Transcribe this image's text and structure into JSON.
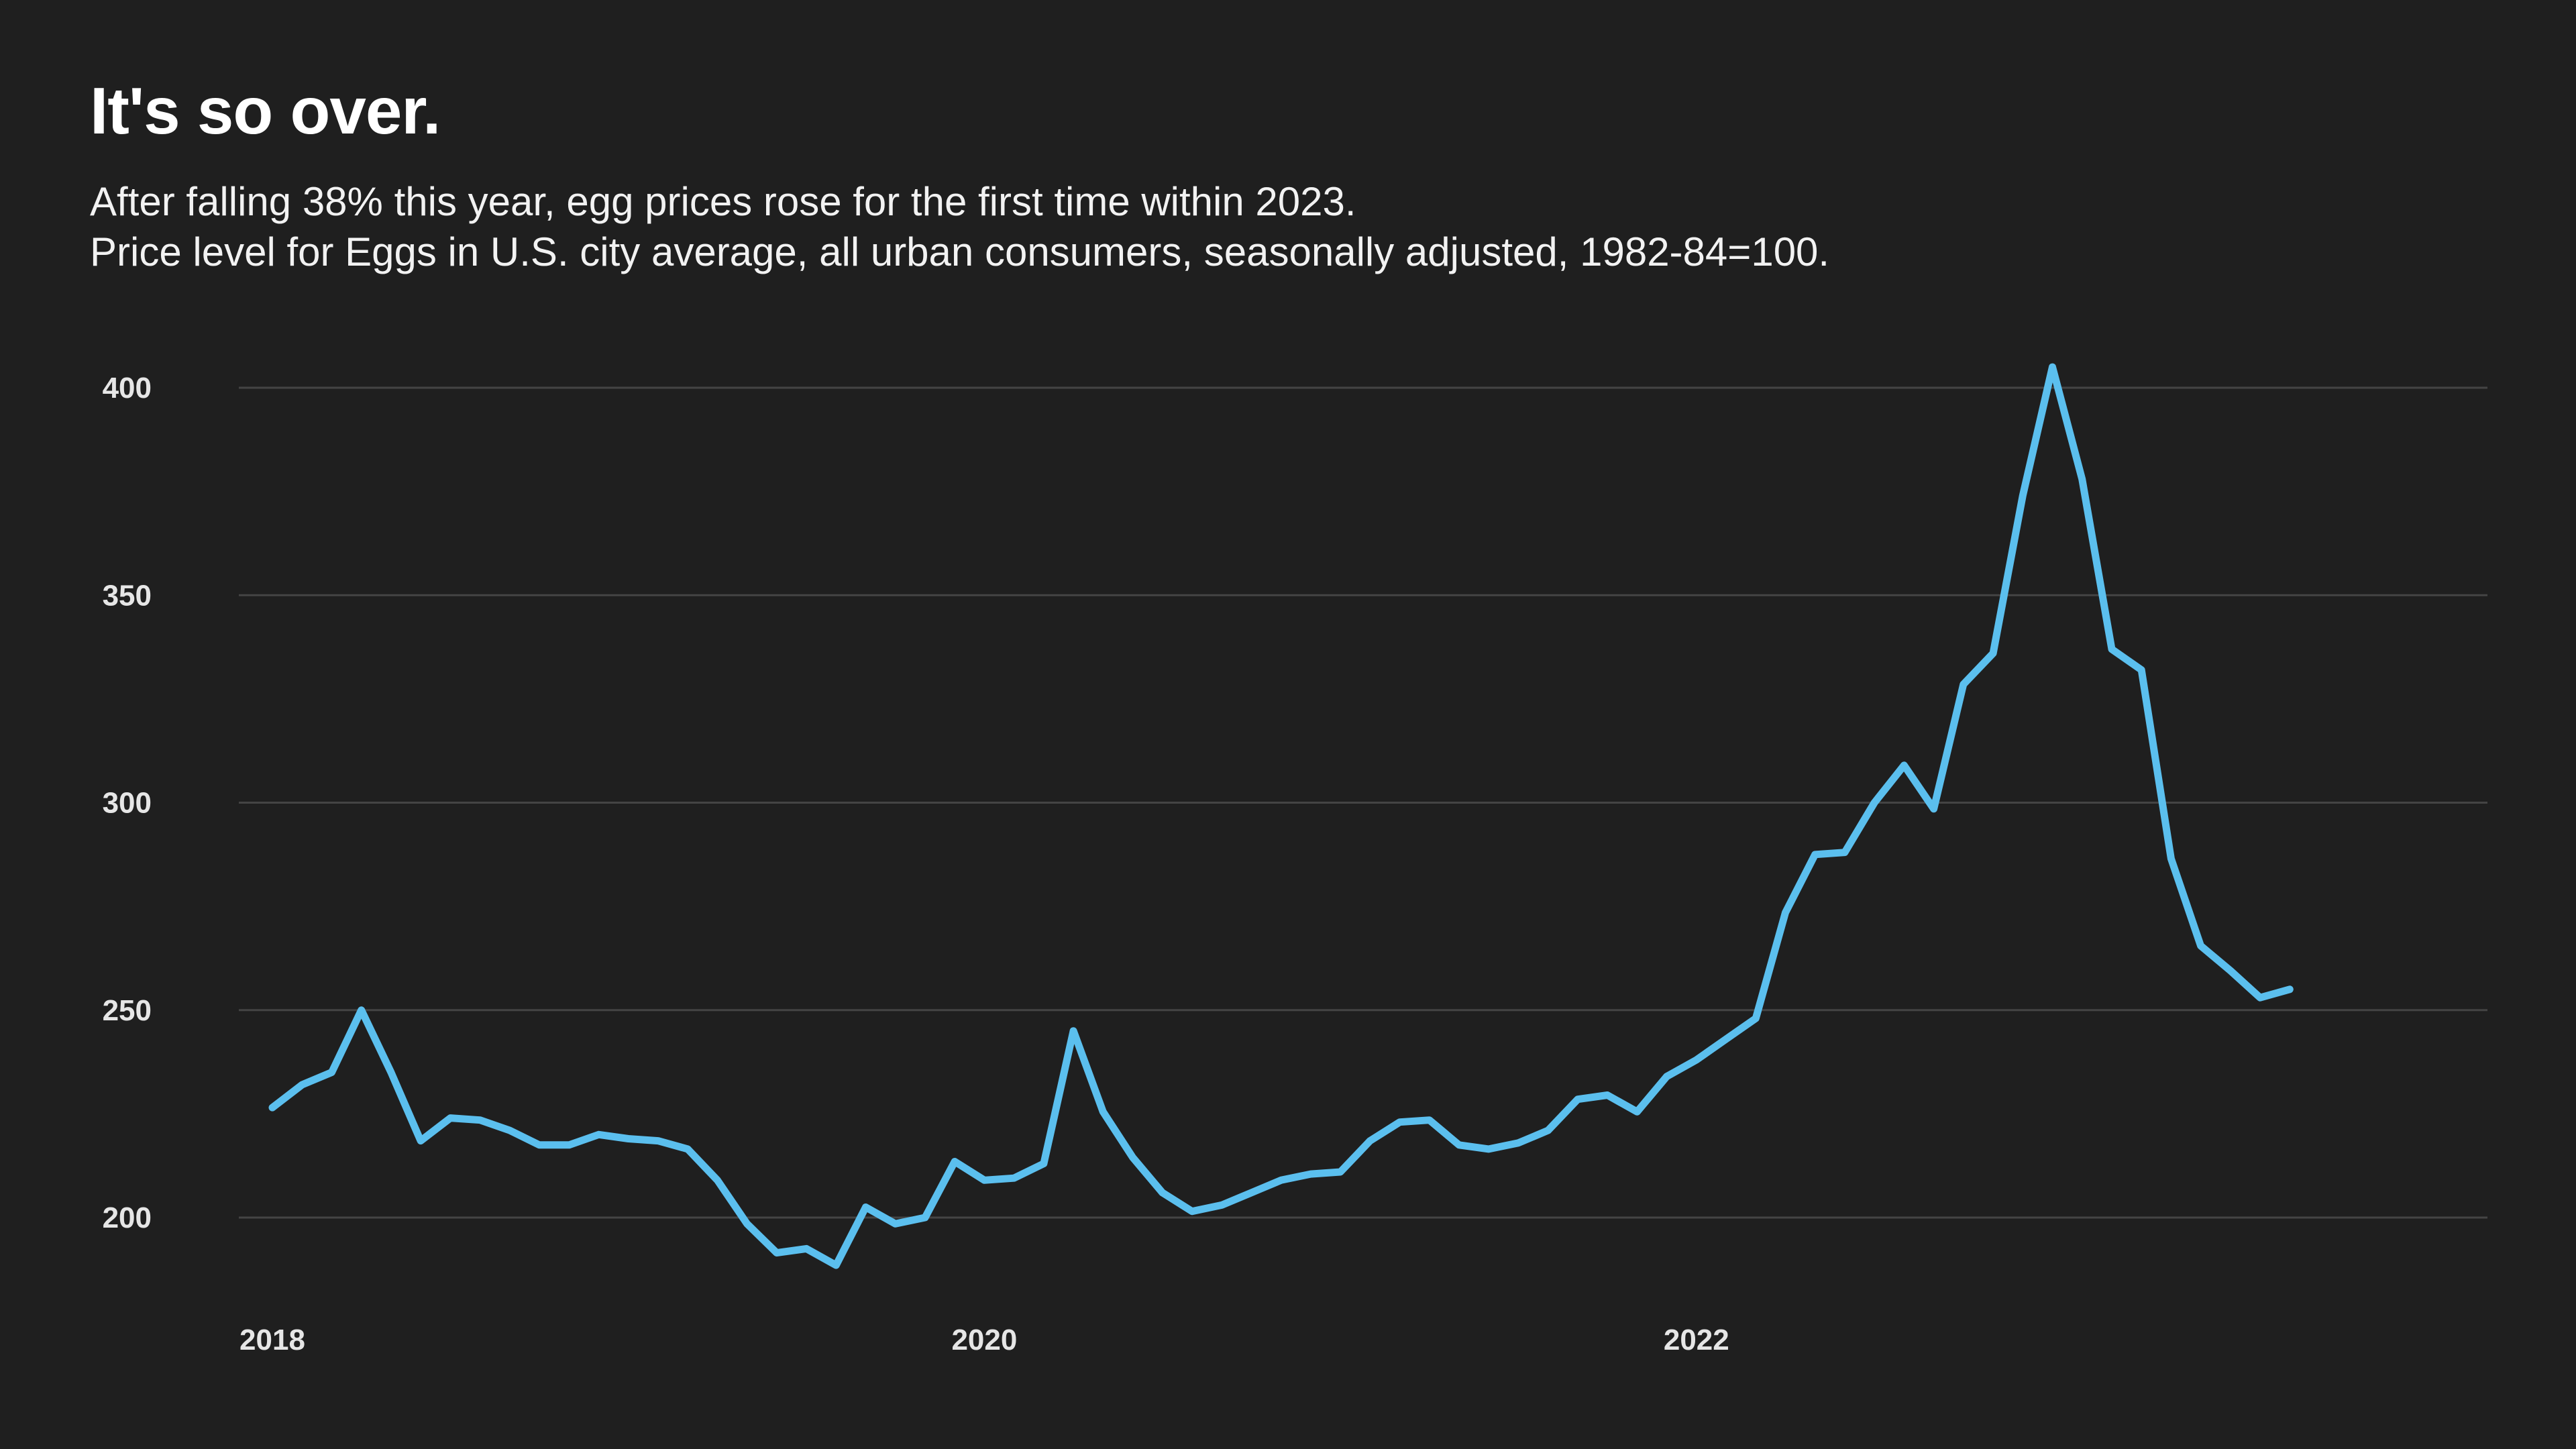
{
  "header": {
    "title": "It's so over.",
    "subtitle_line1": "After falling 38% this year, egg prices rose for the first time within 2023.",
    "subtitle_line2": "Price level for Eggs in U.S. city average, all urban consumers, seasonally adjusted, 1982-84=100."
  },
  "colors": {
    "background": "#1f1f1f",
    "line": "#5bbfee",
    "grid": "#444444",
    "text": "#ffffff"
  },
  "chart_data": {
    "type": "line",
    "title": "It's so over.",
    "subtitle": "After falling 38% this year, egg prices rose for the first time within 2023. Price level for Eggs in U.S. city average, all urban consumers, seasonally adjusted, 1982-84=100.",
    "xlabel": "",
    "ylabel": "",
    "grid": true,
    "legend": "none",
    "xlim": [
      "2018-01",
      "2023-12"
    ],
    "ylim": [
      180,
      410
    ],
    "yticks": [
      200,
      250,
      300,
      350,
      400
    ],
    "ytick_labels": [
      "200",
      "250",
      "300",
      "350",
      "400"
    ],
    "xticks": [
      "2018-01",
      "2020-01",
      "2022-01"
    ],
    "xtick_labels": [
      "2018",
      "2020",
      "2022"
    ],
    "series": [
      {
        "x": [
          "2018-01",
          "2018-02",
          "2018-03",
          "2018-04",
          "2018-05",
          "2018-06",
          "2018-07",
          "2018-08",
          "2018-09",
          "2018-10",
          "2018-11",
          "2018-12",
          "2019-01",
          "2019-02",
          "2019-03",
          "2019-04",
          "2019-05",
          "2019-06",
          "2019-07",
          "2019-08",
          "2019-09",
          "2019-10",
          "2019-11",
          "2019-12",
          "2020-01",
          "2020-02",
          "2020-03",
          "2020-04",
          "2020-05",
          "2020-06",
          "2020-07",
          "2020-08",
          "2020-09",
          "2020-10",
          "2020-11",
          "2020-12",
          "2021-01",
          "2021-02",
          "2021-03",
          "2021-04",
          "2021-05",
          "2021-06",
          "2021-07",
          "2021-08",
          "2021-09",
          "2021-10",
          "2021-11",
          "2021-12",
          "2022-01",
          "2022-02",
          "2022-03",
          "2022-04",
          "2022-05",
          "2022-06",
          "2022-07",
          "2022-08",
          "2022-09",
          "2022-10",
          "2022-11",
          "2022-12",
          "2023-01",
          "2023-02",
          "2023-03",
          "2023-04",
          "2023-05",
          "2023-06",
          "2023-07",
          "2023-08",
          "2023-09"
        ],
        "values": [
          226.5,
          232,
          235,
          250,
          235,
          218.5,
          224,
          223.5,
          221,
          217.5,
          217.5,
          220,
          219,
          218.5,
          216.5,
          209,
          198.5,
          191.5,
          192.5,
          188.5,
          202.5,
          198.5,
          200,
          213.5,
          209,
          209.5,
          213,
          245,
          225.5,
          214.5,
          206,
          201.5,
          203,
          206,
          209,
          210.5,
          211,
          218.5,
          223,
          223.5,
          217.5,
          216.5,
          218,
          221,
          228.5,
          229.5,
          225.5,
          234,
          238,
          243,
          248,
          273.5,
          287.5,
          288,
          300,
          309,
          298.5,
          328.5,
          336,
          374,
          405,
          378,
          337,
          332,
          286.5,
          265.5,
          259.5,
          253,
          255
        ]
      }
    ]
  }
}
